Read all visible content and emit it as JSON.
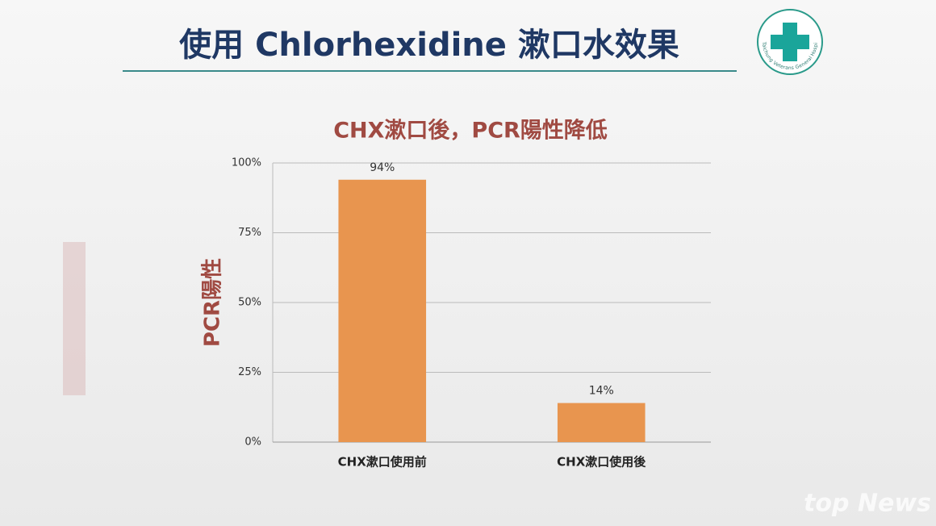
{
  "slide": {
    "title": "使用 Chlorhexidine  漱口水效果",
    "logo_text": "Taichung Veterans General Hospital",
    "watermark": "top News"
  },
  "chart_data": {
    "type": "bar",
    "title": "CHX漱口後，PCR陽性降低",
    "y_label": "PCR陽性",
    "categories": [
      "CHX漱口使用前",
      "CHX漱口使用後"
    ],
    "values": [
      94,
      14
    ],
    "value_labels": [
      "94%",
      "14%"
    ],
    "color": "#e8954f",
    "ylim": [
      0,
      100
    ],
    "yticks": [
      {
        "value": 0,
        "label": "0%"
      },
      {
        "value": 25,
        "label": "25%"
      },
      {
        "value": 50,
        "label": "50%"
      },
      {
        "value": 75,
        "label": "75%"
      },
      {
        "value": 100,
        "label": "100%"
      }
    ],
    "grid": true
  }
}
